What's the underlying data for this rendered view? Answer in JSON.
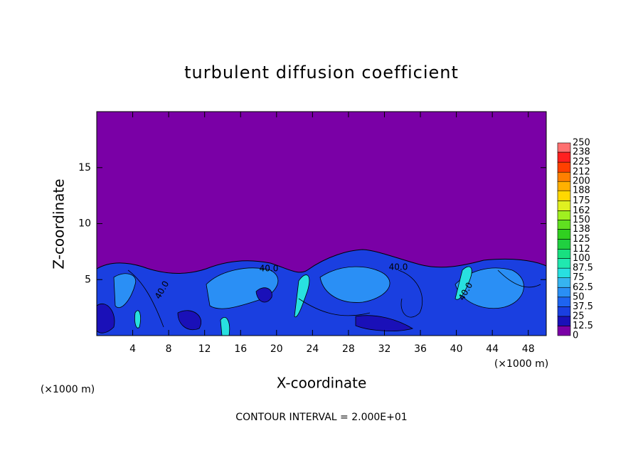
{
  "chart_data": {
    "type": "contour",
    "title": "turbulent diffusion coefficient",
    "xlabel": "X-coordinate",
    "ylabel": "Z-coordinate",
    "x_unit": "(×1000 m)",
    "footer": "CONTOUR INTERVAL = 2.000E+01",
    "xlim": [
      0,
      50
    ],
    "xticks": [
      4,
      8,
      12,
      16,
      20,
      24,
      28,
      32,
      36,
      40,
      44,
      48
    ],
    "ylim": [
      0,
      20
    ],
    "yticks": [
      5,
      10,
      15
    ],
    "levels": [
      0,
      12.5,
      25,
      37.5,
      50,
      62.5,
      75,
      87.5,
      100,
      112,
      125,
      138,
      150,
      162,
      175,
      188,
      200,
      212,
      225,
      238,
      250
    ],
    "colors": [
      "#7a00a6",
      "#1a10b8",
      "#1a3fe0",
      "#1e64f0",
      "#2a8ff5",
      "#36b4f0",
      "#28e0e0",
      "#20e8b0",
      "#18e080",
      "#20d040",
      "#30d020",
      "#60e020",
      "#a0f020",
      "#e0f020",
      "#ffd800",
      "#ffb000",
      "#ff8000",
      "#ff4000",
      "#ff2020",
      "#ff7070"
    ],
    "contour_labels": [
      "40.0",
      "40.0",
      "40.0",
      "40.0"
    ]
  }
}
